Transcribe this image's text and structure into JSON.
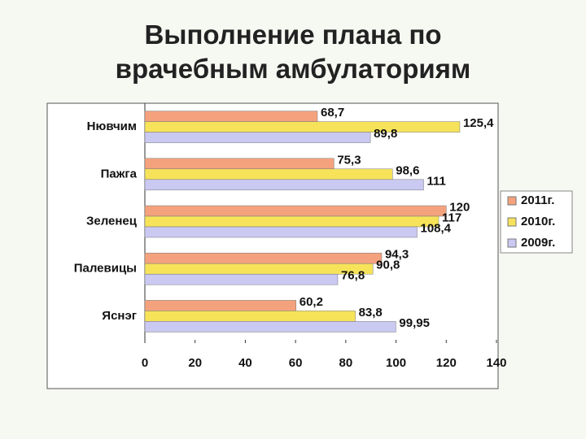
{
  "chart_data": {
    "type": "bar",
    "orientation": "horizontal",
    "title": "Выполнение плана по врачебным амбулаториям",
    "categories": [
      "Нювчим",
      "Пажга",
      "Зеленец",
      "Палевицы",
      "Яснэг"
    ],
    "series": [
      {
        "name": "2011г.",
        "color": "#f4a27e",
        "values": [
          68.7,
          75.3,
          120,
          94.3,
          60.2
        ],
        "value_labels": [
          "68,7",
          "75,3",
          "120",
          "94,3",
          "60,2"
        ]
      },
      {
        "name": "2010г.",
        "color": "#f7e35a",
        "values": [
          125.4,
          98.6,
          117,
          90.8,
          83.8
        ],
        "value_labels": [
          "125,4",
          "98,6",
          "117",
          "90,8",
          "83,8"
        ]
      },
      {
        "name": "2009г.",
        "color": "#c9c9f2",
        "values": [
          89.8,
          111,
          108.4,
          76.8,
          99.95
        ],
        "value_labels": [
          "89,8",
          "111",
          "108,4",
          "76,8",
          "99,95"
        ]
      }
    ],
    "xlim": [
      0,
      140
    ],
    "xticks": [
      0,
      20,
      40,
      60,
      80,
      100,
      120,
      140
    ],
    "legend": "right"
  }
}
